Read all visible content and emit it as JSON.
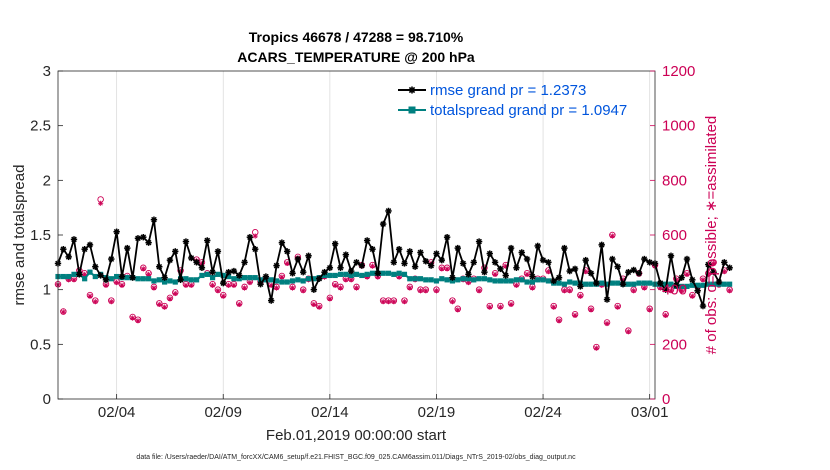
{
  "chart_data": {
    "type": "line",
    "title": "Tropics 46678 / 47288 = 98.710%",
    "subtitle": "ACARS_TEMPERATURE @ 200 hPa",
    "xlabel": "Feb.01,2019 00:00:00 start",
    "ylabel": "rmse and totalspread",
    "y2label": "# of obs: o=possible; ∗=assimilated",
    "footnote": "data file: /Users/raeder/DAI/ATM_forcXX/CAM6_setup/f.e21.FHIST_BGC.f09_025.CAM6assim.011/Diags_NTrS_2019-02/obs_diag_output.nc",
    "xlim": [
      1,
      29
    ],
    "ylim": [
      0,
      3
    ],
    "y2lim": [
      0,
      1200
    ],
    "x_tick_positions": [
      3.75,
      8.75,
      13.75,
      18.75,
      23.75,
      28.75
    ],
    "x_tick_labels": [
      "02/04",
      "02/09",
      "02/14",
      "02/19",
      "02/24",
      "03/01"
    ],
    "y_ticks": [
      0,
      0.5,
      1,
      1.5,
      2,
      2.5,
      3
    ],
    "y_tick_labels": [
      "0",
      "0.5",
      "1",
      "1.5",
      "2",
      "2.5",
      "3"
    ],
    "y2_ticks": [
      0,
      200,
      400,
      600,
      800,
      1000,
      1200
    ],
    "y2_tick_labels": [
      "0",
      "200",
      "400",
      "600",
      "800",
      "1000",
      "1200"
    ],
    "colors": {
      "rmse": "#000000",
      "spread": "#008080",
      "obs": "#cc0055",
      "legend_text": "#0055dd"
    },
    "x_start": 1.0,
    "x_step": 0.25,
    "series": [
      {
        "name": "rmse grand pr = 1.2373",
        "values": [
          1.24,
          1.37,
          1.3,
          1.46,
          1.14,
          1.37,
          1.41,
          1.21,
          1.13,
          1.09,
          1.28,
          1.53,
          1.12,
          1.38,
          1.11,
          1.47,
          1.48,
          1.43,
          1.64,
          1.21,
          1.11,
          1.27,
          1.35,
          1.09,
          1.44,
          1.29,
          1.25,
          1.2,
          1.45,
          1.16,
          1.35,
          1.06,
          1.16,
          1.17,
          1.13,
          1.25,
          1.48,
          1.37,
          1.05,
          1.12,
          0.9,
          1.22,
          1.43,
          1.35,
          1.15,
          1.28,
          1.16,
          1.31,
          1.0,
          1.1,
          1.16,
          1.2,
          1.42,
          1.2,
          1.32,
          1.17,
          1.25,
          1.22,
          1.45,
          1.37,
          1.15,
          1.6,
          1.72,
          1.25,
          1.37,
          1.24,
          1.35,
          1.21,
          1.34,
          1.26,
          1.22,
          1.33,
          1.27,
          1.48,
          1.11,
          1.38,
          1.24,
          1.14,
          1.25,
          1.44,
          1.16,
          1.33,
          1.25,
          1.19,
          1.13,
          1.38,
          1.2,
          1.34,
          1.28,
          1.12,
          1.4,
          1.27,
          1.25,
          1.08,
          1.11,
          1.38,
          1.17,
          1.19,
          1.03,
          1.27,
          1.15,
          1.06,
          1.41,
          0.91,
          1.28,
          1.21,
          1.05,
          1.16,
          1.18,
          1.15,
          1.28,
          1.25,
          1.24,
          1.06,
          1.0,
          1.31,
          1.04,
          1.11,
          1.28,
          1.09,
          0.99,
          0.85,
          1.23,
          1.16,
          1.07,
          1.25,
          1.2
        ],
        "color": "#000000"
      },
      {
        "name": "totalspread grand pr = 1.0947",
        "values": [
          1.12,
          1.12,
          1.12,
          1.14,
          1.14,
          1.1,
          1.16,
          1.12,
          1.14,
          1.11,
          1.1,
          1.12,
          1.11,
          1.11,
          1.11,
          1.1,
          1.1,
          1.1,
          1.08,
          1.09,
          1.07,
          1.08,
          1.07,
          1.1,
          1.1,
          1.09,
          1.09,
          1.13,
          1.14,
          1.11,
          1.14,
          1.13,
          1.12,
          1.1,
          1.1,
          1.11,
          1.11,
          1.11,
          1.09,
          1.09,
          1.09,
          1.08,
          1.07,
          1.07,
          1.08,
          1.09,
          1.08,
          1.1,
          1.1,
          1.11,
          1.13,
          1.13,
          1.13,
          1.14,
          1.14,
          1.13,
          1.14,
          1.13,
          1.14,
          1.15,
          1.15,
          1.15,
          1.15,
          1.14,
          1.15,
          1.14,
          1.1,
          1.1,
          1.1,
          1.09,
          1.09,
          1.08,
          1.1,
          1.09,
          1.08,
          1.09,
          1.1,
          1.1,
          1.09,
          1.1,
          1.1,
          1.09,
          1.08,
          1.08,
          1.08,
          1.08,
          1.09,
          1.09,
          1.07,
          1.07,
          1.09,
          1.09,
          1.08,
          1.06,
          1.06,
          1.05,
          1.07,
          1.06,
          1.06,
          1.05,
          1.05,
          1.05,
          1.06,
          1.05,
          1.06,
          1.06,
          1.05,
          1.05,
          1.05,
          1.06,
          1.06,
          1.06,
          1.05,
          1.05,
          1.05,
          1.05,
          1.03,
          1.03,
          1.03,
          1.04,
          1.04,
          1.04,
          1.05,
          1.05,
          1.05,
          1.05,
          1.05
        ],
        "color": "#008080"
      },
      {
        "name": "observations possible",
        "axis": "right",
        "values": [
          420,
          320,
          440,
          440,
          470,
          460,
          380,
          360,
          730,
          420,
          360,
          430,
          420,
          450,
          300,
          290,
          480,
          460,
          410,
          350,
          340,
          370,
          390,
          470,
          420,
          420,
          510,
          500,
          460,
          420,
          400,
          380,
          420,
          420,
          350,
          410,
          430,
          610,
          430,
          440,
          420,
          410,
          450,
          500,
          410,
          520,
          400,
          440,
          350,
          340,
          450,
          370,
          420,
          410,
          440,
          440,
          410,
          490,
          450,
          490,
          450,
          360,
          360,
          360,
          450,
          360,
          410,
          440,
          400,
          400,
          500,
          400,
          480,
          480,
          360,
          330,
          440,
          430,
          440,
          400,
          480,
          340,
          460,
          340,
          490,
          350,
          420,
          440,
          460,
          410,
          440,
          440,
          470,
          340,
          290,
          400,
          400,
          310,
          380,
          470,
          330,
          190,
          420,
          280,
          600,
          340,
          440,
          250,
          400,
          460,
          410,
          330,
          490,
          410,
          310,
          400,
          440,
          400,
          460,
          380,
          410,
          440,
          460,
          500,
          420,
          470,
          400
        ],
        "color": "#cc0055"
      },
      {
        "name": "observations assimilated",
        "axis": "right",
        "values": [
          418,
          318,
          436,
          436,
          466,
          456,
          376,
          356,
          716,
          416,
          356,
          426,
          416,
          446,
          296,
          286,
          476,
          456,
          406,
          346,
          336,
          366,
          386,
          466,
          416,
          416,
          506,
          496,
          456,
          416,
          396,
          376,
          416,
          416,
          346,
          406,
          426,
          596,
          426,
          436,
          416,
          406,
          446,
          496,
          406,
          516,
          396,
          436,
          346,
          336,
          446,
          366,
          416,
          406,
          436,
          436,
          406,
          486,
          446,
          486,
          446,
          356,
          356,
          356,
          446,
          356,
          406,
          436,
          396,
          396,
          496,
          396,
          476,
          476,
          356,
          326,
          436,
          426,
          436,
          396,
          476,
          336,
          456,
          336,
          486,
          346,
          416,
          436,
          456,
          406,
          436,
          436,
          466,
          336,
          286,
          396,
          396,
          306,
          376,
          466,
          326,
          186,
          416,
          276,
          596,
          336,
          436,
          246,
          396,
          456,
          406,
          326,
          486,
          406,
          306,
          396,
          436,
          396,
          456,
          376,
          406,
          436,
          456,
          496,
          416,
          466,
          396
        ],
        "color": "#cc0055"
      }
    ]
  }
}
